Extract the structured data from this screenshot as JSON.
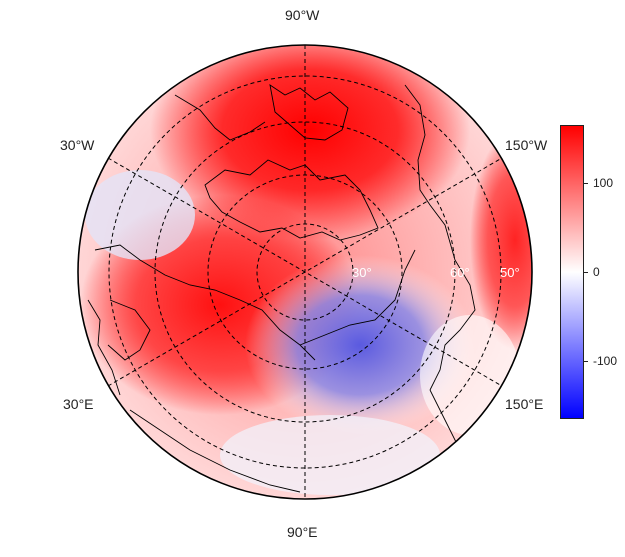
{
  "map": {
    "projection": "north-polar-stereographic",
    "longitude_labels": [
      "90°W",
      "30°W",
      "150°W",
      "30°E",
      "150°E",
      "90°E"
    ],
    "latitude_labels": [
      "30°",
      "60°",
      "50°"
    ],
    "field": {
      "centers": [
        {
          "name": "positive-anomaly-canadian-arctic",
          "sign": "positive"
        },
        {
          "name": "positive-anomaly-eurasia",
          "sign": "positive"
        },
        {
          "name": "negative-anomaly-siberia-arctic",
          "sign": "negative"
        }
      ]
    }
  },
  "colorbar": {
    "ticks": [
      "100",
      "0",
      "-100"
    ],
    "min": -165,
    "max": 165,
    "colors": {
      "low": "#0000ff",
      "mid": "#ffffff",
      "high": "#ff0000"
    }
  }
}
